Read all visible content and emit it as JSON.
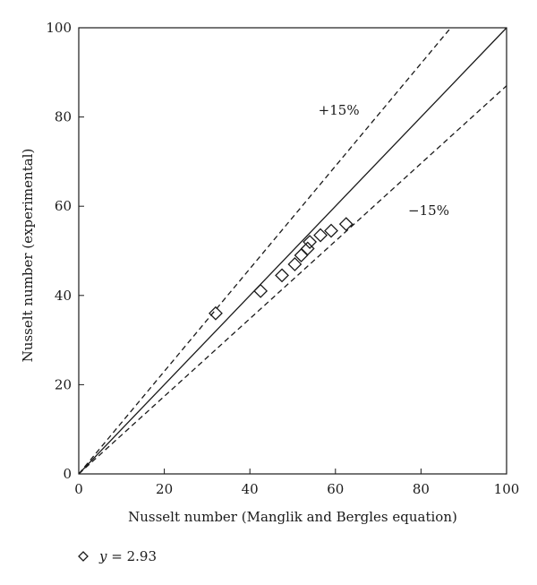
{
  "chart_data": {
    "type": "scatter",
    "title": "",
    "xlabel": "Nusselt number (Manglik and Bergles equation)",
    "ylabel": "Nusselt number (experimental)",
    "xlim": [
      0,
      100
    ],
    "ylim": [
      0,
      100
    ],
    "x_ticks": [
      "0",
      "20",
      "40",
      "60",
      "80",
      "100"
    ],
    "y_ticks": [
      "0",
      "20",
      "40",
      "60",
      "80",
      "100"
    ],
    "grid": false,
    "legend_position": "bottom-left",
    "series": [
      {
        "name": "y = 2.93",
        "name_parts": {
          "var": "y",
          "rest": " = 2.93"
        },
        "marker": "diamond-open",
        "points": [
          {
            "x": 32,
            "y": 36
          },
          {
            "x": 42.5,
            "y": 41
          },
          {
            "x": 47.5,
            "y": 44.5
          },
          {
            "x": 50.5,
            "y": 47
          },
          {
            "x": 52,
            "y": 49
          },
          {
            "x": 53.5,
            "y": 50.5
          },
          {
            "x": 54,
            "y": 52
          },
          {
            "x": 56.5,
            "y": 53.5
          },
          {
            "x": 59,
            "y": 54.5
          },
          {
            "x": 62.5,
            "y": 56
          }
        ]
      }
    ],
    "reference_lines": [
      {
        "label": "",
        "slope": 1.0,
        "style": "solid"
      },
      {
        "label": "+15%",
        "slope": 1.15,
        "style": "dashed"
      },
      {
        "label": "−15%",
        "slope": 0.87,
        "style": "dashed"
      }
    ],
    "annotations": [
      {
        "text": "+15%",
        "x": 56,
        "y": 80.5
      },
      {
        "text": "−15%",
        "x": 77,
        "y": 58
      }
    ],
    "colors": {
      "ink": "#1a1a1a",
      "background": "#ffffff"
    }
  }
}
